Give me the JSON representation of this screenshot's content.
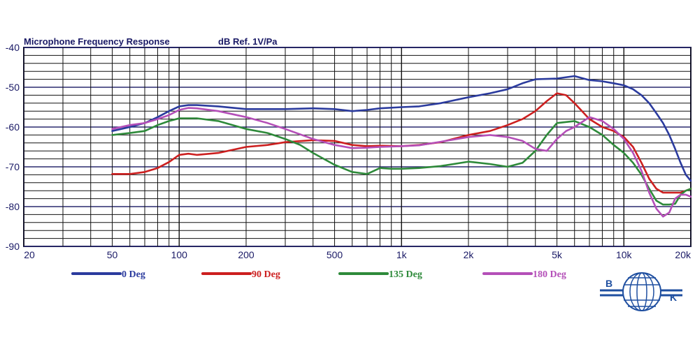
{
  "chart_data": {
    "type": "line",
    "title": "Microphone Frequency Response",
    "subtitle": "dB Ref. 1V/Pa",
    "x_scale": "log",
    "xlim": [
      20,
      20000
    ],
    "ylim": [
      -90,
      -40
    ],
    "grid": true,
    "y_tick_labels": [
      {
        "value": -40,
        "label": "-40"
      },
      {
        "value": -50,
        "label": "-50"
      },
      {
        "value": -60,
        "label": "-60"
      },
      {
        "value": -70,
        "label": "-70"
      },
      {
        "value": -80,
        "label": "-80"
      },
      {
        "value": -90,
        "label": "-90"
      }
    ],
    "x_tick_labels": [
      {
        "value": 20,
        "label": "20"
      },
      {
        "value": 50,
        "label": "50"
      },
      {
        "value": 100,
        "label": "100"
      },
      {
        "value": 200,
        "label": "200"
      },
      {
        "value": 500,
        "label": "500"
      },
      {
        "value": 1000,
        "label": "1k"
      },
      {
        "value": 2000,
        "label": "2k"
      },
      {
        "value": 5000,
        "label": "5k"
      },
      {
        "value": 10000,
        "label": "10k"
      },
      {
        "value": 20000,
        "label": "20k"
      }
    ],
    "legend_position": "bottom",
    "series": [
      {
        "name": "0 Deg",
        "color": "#2b3b9e",
        "points": [
          [
            50,
            -61
          ],
          [
            60,
            -60
          ],
          [
            70,
            -59
          ],
          [
            80,
            -57.5
          ],
          [
            90,
            -56
          ],
          [
            100,
            -54.8
          ],
          [
            110,
            -54.5
          ],
          [
            120,
            -54.5
          ],
          [
            150,
            -54.8
          ],
          [
            200,
            -55.5
          ],
          [
            300,
            -55.5
          ],
          [
            400,
            -55.3
          ],
          [
            500,
            -55.5
          ],
          [
            600,
            -56
          ],
          [
            700,
            -55.7
          ],
          [
            800,
            -55.3
          ],
          [
            1000,
            -55
          ],
          [
            1200,
            -54.8
          ],
          [
            1500,
            -54
          ],
          [
            2000,
            -52.5
          ],
          [
            2500,
            -51.5
          ],
          [
            3000,
            -50.5
          ],
          [
            3500,
            -49
          ],
          [
            4000,
            -48
          ],
          [
            5000,
            -47.8
          ],
          [
            6000,
            -47.2
          ],
          [
            7000,
            -48.2
          ],
          [
            8000,
            -48.5
          ],
          [
            9000,
            -49
          ],
          [
            10000,
            -49.5
          ],
          [
            11000,
            -50.5
          ],
          [
            12000,
            -52
          ],
          [
            13000,
            -54
          ],
          [
            14000,
            -56.5
          ],
          [
            15000,
            -59
          ],
          [
            16000,
            -62
          ],
          [
            17000,
            -65.5
          ],
          [
            18000,
            -69
          ],
          [
            19000,
            -72
          ],
          [
            20000,
            -73.5
          ]
        ]
      },
      {
        "name": "90 Deg",
        "color": "#cc1f1f",
        "points": [
          [
            50,
            -71.8
          ],
          [
            60,
            -71.8
          ],
          [
            70,
            -71.3
          ],
          [
            80,
            -70.3
          ],
          [
            90,
            -68.8
          ],
          [
            100,
            -67
          ],
          [
            110,
            -66.7
          ],
          [
            120,
            -67
          ],
          [
            150,
            -66.5
          ],
          [
            200,
            -65
          ],
          [
            250,
            -64.5
          ],
          [
            300,
            -63.8
          ],
          [
            400,
            -63.3
          ],
          [
            500,
            -63.5
          ],
          [
            600,
            -64.5
          ],
          [
            700,
            -64.8
          ],
          [
            800,
            -64.7
          ],
          [
            1000,
            -64.8
          ],
          [
            1200,
            -64.5
          ],
          [
            1500,
            -63.8
          ],
          [
            2000,
            -62
          ],
          [
            2500,
            -61
          ],
          [
            3000,
            -59.5
          ],
          [
            3500,
            -58
          ],
          [
            4000,
            -56
          ],
          [
            4500,
            -53.5
          ],
          [
            5000,
            -51.5
          ],
          [
            5500,
            -52
          ],
          [
            6000,
            -54
          ],
          [
            7000,
            -58
          ],
          [
            8000,
            -60
          ],
          [
            9000,
            -61
          ],
          [
            10000,
            -62.5
          ],
          [
            11000,
            -65
          ],
          [
            12000,
            -69
          ],
          [
            13000,
            -73
          ],
          [
            14000,
            -75.5
          ],
          [
            15000,
            -76.5
          ],
          [
            16000,
            -76.5
          ],
          [
            17000,
            -76.5
          ],
          [
            18000,
            -76.5
          ],
          [
            19000,
            -76
          ],
          [
            20000,
            -75.5
          ]
        ]
      },
      {
        "name": "135 Deg",
        "color": "#2e8a3a",
        "points": [
          [
            50,
            -62
          ],
          [
            60,
            -61.5
          ],
          [
            70,
            -61
          ],
          [
            80,
            -59.5
          ],
          [
            90,
            -58.5
          ],
          [
            100,
            -57.8
          ],
          [
            110,
            -57.8
          ],
          [
            120,
            -57.8
          ],
          [
            150,
            -58.5
          ],
          [
            200,
            -60.5
          ],
          [
            250,
            -61.5
          ],
          [
            300,
            -63
          ],
          [
            350,
            -64.5
          ],
          [
            400,
            -66.5
          ],
          [
            500,
            -69.5
          ],
          [
            600,
            -71.3
          ],
          [
            700,
            -71.8
          ],
          [
            800,
            -70.3
          ],
          [
            900,
            -70.5
          ],
          [
            1000,
            -70.5
          ],
          [
            1200,
            -70.3
          ],
          [
            1500,
            -69.8
          ],
          [
            2000,
            -68.7
          ],
          [
            2500,
            -69.3
          ],
          [
            3000,
            -70
          ],
          [
            3500,
            -69
          ],
          [
            4000,
            -66
          ],
          [
            4500,
            -62
          ],
          [
            5000,
            -59
          ],
          [
            6000,
            -58.5
          ],
          [
            7000,
            -60
          ],
          [
            8000,
            -62
          ],
          [
            9000,
            -64.5
          ],
          [
            10000,
            -66.5
          ],
          [
            11000,
            -69
          ],
          [
            12000,
            -72
          ],
          [
            13000,
            -75.5
          ],
          [
            14000,
            -78.5
          ],
          [
            15000,
            -79.5
          ],
          [
            16000,
            -79.5
          ],
          [
            17000,
            -79.3
          ],
          [
            18000,
            -77
          ],
          [
            19000,
            -76
          ],
          [
            20000,
            -75.5
          ]
        ]
      },
      {
        "name": "180 Deg",
        "color": "#b44fb8",
        "points": [
          [
            50,
            -60.5
          ],
          [
            60,
            -59.5
          ],
          [
            70,
            -59
          ],
          [
            80,
            -58
          ],
          [
            90,
            -57
          ],
          [
            100,
            -55.7
          ],
          [
            110,
            -55.2
          ],
          [
            120,
            -55.3
          ],
          [
            150,
            -56
          ],
          [
            200,
            -57.5
          ],
          [
            250,
            -59
          ],
          [
            300,
            -60.5
          ],
          [
            400,
            -63
          ],
          [
            500,
            -64.5
          ],
          [
            600,
            -65.3
          ],
          [
            700,
            -65.2
          ],
          [
            800,
            -65
          ],
          [
            1000,
            -64.8
          ],
          [
            1200,
            -64.6
          ],
          [
            1500,
            -63.7
          ],
          [
            2000,
            -62.5
          ],
          [
            2500,
            -62
          ],
          [
            3000,
            -62.5
          ],
          [
            3500,
            -63.5
          ],
          [
            4000,
            -65.5
          ],
          [
            4500,
            -66
          ],
          [
            5000,
            -63
          ],
          [
            5500,
            -61
          ],
          [
            6000,
            -60
          ],
          [
            7000,
            -57.5
          ],
          [
            8000,
            -58.5
          ],
          [
            9000,
            -60.5
          ],
          [
            10000,
            -63
          ],
          [
            11000,
            -66.5
          ],
          [
            12000,
            -71
          ],
          [
            13000,
            -76.5
          ],
          [
            14000,
            -80.5
          ],
          [
            15000,
            -82.5
          ],
          [
            16000,
            -81.5
          ],
          [
            17000,
            -78
          ],
          [
            18000,
            -77
          ],
          [
            19000,
            -77
          ],
          [
            20000,
            -77.5
          ]
        ]
      }
    ]
  },
  "logo": {
    "text_left": "B",
    "text_right": "K",
    "color": "#1f4fa0"
  }
}
